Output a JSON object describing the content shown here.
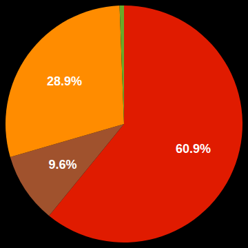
{
  "chart_data": {
    "type": "pie",
    "values": [
      60.9,
      9.6,
      28.9,
      0.6
    ],
    "value_labels": [
      "60.9%",
      "9.6%",
      "28.9%",
      null
    ],
    "colors": [
      "#e01b00",
      "#a0522d",
      "#ff8c00",
      "#6aaa2a"
    ],
    "data_labels": true
  }
}
